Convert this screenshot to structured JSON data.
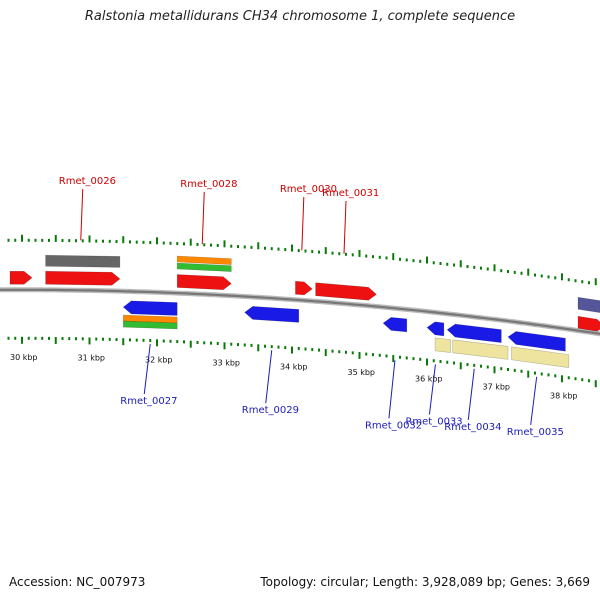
{
  "title": "Ralstonia metallidurans CH34 chromosome 1, complete sequence",
  "footer": {
    "accession": "Accession: NC_007973",
    "summary": "Topology: circular; Length: 3,928,089 bp; Genes: 3,669"
  },
  "colors": {
    "forward_cds": "#ee1111",
    "reverse_cds": "#1a1ae6",
    "grey_feature": "#666666",
    "orange_feature": "#ff8800",
    "green_feature": "#33bb33",
    "pale_feature": "#eee4a0",
    "purple_feature": "#555599",
    "backbone": "#888888",
    "ticks": "#0a7a0a",
    "label_forward": "#cc0000",
    "label_reverse": "#1c1cb8"
  },
  "scale": {
    "unit": "kbp",
    "ticks": [
      {
        "value": 30,
        "label": "30 kbp"
      },
      {
        "value": 31,
        "label": "31 kbp"
      },
      {
        "value": 32,
        "label": "32 kbp"
      },
      {
        "value": 33,
        "label": "33 kbp"
      },
      {
        "value": 34,
        "label": "34 kbp"
      },
      {
        "value": 35,
        "label": "35 kbp"
      },
      {
        "value": 36,
        "label": "36 kbp"
      },
      {
        "value": 37,
        "label": "37 kbp"
      },
      {
        "value": 38,
        "label": "38 kbp"
      }
    ]
  },
  "genes_forward": [
    {
      "name": "Rmet_0026",
      "start": 30.35,
      "end": 31.45
    },
    {
      "name": "Rmet_0028",
      "start": 32.3,
      "end": 33.1
    },
    {
      "name": "Rmet_0030",
      "start": 34.05,
      "end": 34.3
    },
    {
      "name": "Rmet_0031",
      "start": 34.35,
      "end": 35.25
    }
  ],
  "genes_reverse": [
    {
      "name": "Rmet_0027",
      "start": 31.5,
      "end": 32.3
    },
    {
      "name": "Rmet_0029",
      "start": 33.3,
      "end": 34.1
    },
    {
      "name": "Rmet_0032",
      "start": 35.35,
      "end": 35.7
    },
    {
      "name": "Rmet_0033",
      "start": 36.0,
      "end": 36.25
    },
    {
      "name": "Rmet_0034",
      "start": 36.3,
      "end": 37.1
    },
    {
      "name": "Rmet_0035",
      "start": 37.2,
      "end": 38.05
    }
  ]
}
